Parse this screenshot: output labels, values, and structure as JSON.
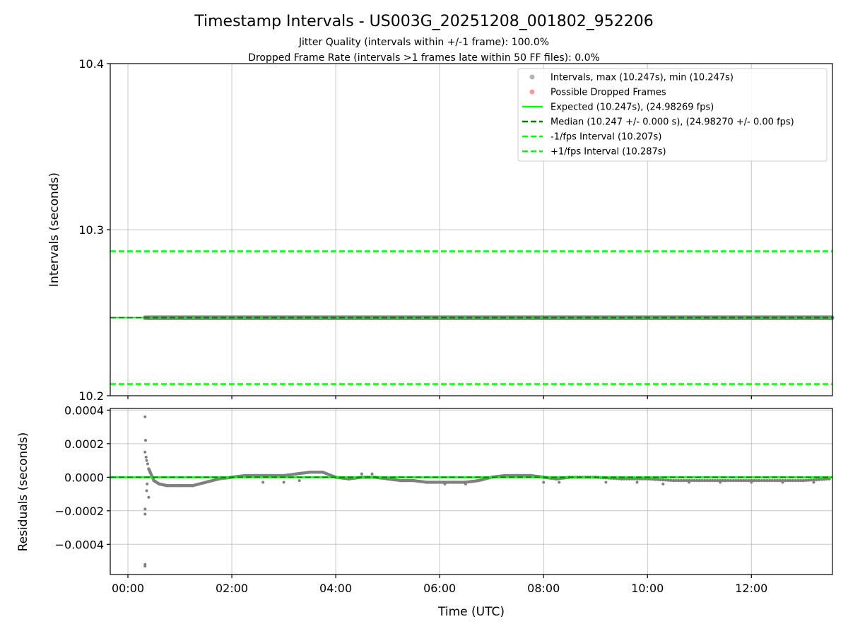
{
  "chart_data": [
    {
      "type": "scatter",
      "title": "Timestamp Intervals - US003G_20251208_001802_952206",
      "subtitle_lines": [
        "Jitter Quality (intervals within +/-1 frame): 100.0%",
        "Dropped Frame Rate (intervals >1 frames late within 50 FF files): 0.0%"
      ],
      "xlabel": "",
      "ylabel": "Intervals (seconds)",
      "xlim_hours": [
        -0.34,
        13.56
      ],
      "ylim": [
        10.2,
        10.4
      ],
      "yticks": [
        10.2,
        10.3,
        10.4
      ],
      "ytick_labels": [
        "10.2",
        "10.3",
        "10.4"
      ],
      "xticks_hours": [
        0,
        2,
        4,
        6,
        8,
        10,
        12
      ],
      "grid": true,
      "legend_position": "top-right",
      "series": [
        {
          "name": "Intervals, max (10.247s), min (10.247s)",
          "kind": "points",
          "color": "#808080",
          "x_range_hours": [
            0.33,
            13.56
          ],
          "value": 10.247
        },
        {
          "name": "Possible Dropped Frames",
          "kind": "points",
          "color": "#ff5555",
          "points": []
        },
        {
          "name": "Expected (10.247s), (24.98269 fps)",
          "kind": "line",
          "style": "solid",
          "color": "#00ff00",
          "value": 10.247
        },
        {
          "name": "Median (10.247 +/- 0.000 s), (24.98270 +/- 0.00 fps)",
          "kind": "line",
          "style": "dashed",
          "color": "#008000",
          "value": 10.247
        },
        {
          "name": "-1/fps Interval (10.207s)",
          "kind": "line",
          "style": "dashed",
          "color": "#00ff00",
          "value": 10.207
        },
        {
          "name": "+1/fps Interval (10.287s)",
          "kind": "line",
          "style": "dashed",
          "color": "#00ff00",
          "value": 10.287
        }
      ]
    },
    {
      "type": "scatter",
      "xlabel": "Time (UTC)",
      "ylabel": "Residuals (seconds)",
      "xlim_hours": [
        -0.34,
        13.56
      ],
      "ylim": [
        -0.00058,
        0.00041
      ],
      "yticks": [
        -0.0004,
        -0.0002,
        0.0,
        0.0002,
        0.0004
      ],
      "ytick_labels": [
        "−0.0004",
        "−0.0002",
        "0.0000",
        "0.0002",
        "0.0004"
      ],
      "xticks_hours": [
        0,
        2,
        4,
        6,
        8,
        10,
        12
      ],
      "xtick_labels": [
        "00:00",
        "02:00",
        "04:00",
        "06:00",
        "08:00",
        "10:00",
        "12:00"
      ],
      "grid": true,
      "zero_lines": [
        {
          "color": "#00ff00",
          "style": "solid"
        },
        {
          "color": "#008000",
          "style": "dashed"
        }
      ],
      "point_color": "#808080",
      "outliers": [
        [
          0.33,
          0.00036
        ],
        [
          0.34,
          0.00022
        ],
        [
          0.33,
          0.00015
        ],
        [
          0.35,
          0.00012
        ],
        [
          0.36,
          0.0001
        ],
        [
          0.38,
          8e-05
        ],
        [
          0.36,
          -8e-05
        ],
        [
          0.4,
          -0.00012
        ],
        [
          0.33,
          -0.00019
        ],
        [
          0.33,
          -0.00022
        ],
        [
          0.33,
          -0.00052
        ],
        [
          0.33,
          -0.00053
        ],
        [
          0.37,
          -4e-05
        ],
        [
          0.42,
          4e-05
        ]
      ],
      "trend": [
        [
          0.4,
          5e-05
        ],
        [
          0.5,
          -2e-05
        ],
        [
          0.6,
          -4e-05
        ],
        [
          0.75,
          -5e-05
        ],
        [
          1.0,
          -5e-05
        ],
        [
          1.25,
          -5e-05
        ],
        [
          1.5,
          -3e-05
        ],
        [
          1.75,
          -1e-05
        ],
        [
          2.0,
          0.0
        ],
        [
          2.25,
          1e-05
        ],
        [
          2.5,
          1e-05
        ],
        [
          2.75,
          1e-05
        ],
        [
          3.0,
          1e-05
        ],
        [
          3.25,
          2e-05
        ],
        [
          3.5,
          3e-05
        ],
        [
          3.75,
          3e-05
        ],
        [
          4.0,
          0.0
        ],
        [
          4.25,
          -1e-05
        ],
        [
          4.5,
          0.0
        ],
        [
          4.75,
          0.0
        ],
        [
          5.0,
          -1e-05
        ],
        [
          5.25,
          -2e-05
        ],
        [
          5.5,
          -2e-05
        ],
        [
          5.75,
          -3e-05
        ],
        [
          6.0,
          -3e-05
        ],
        [
          6.25,
          -3e-05
        ],
        [
          6.5,
          -3e-05
        ],
        [
          6.75,
          -2e-05
        ],
        [
          7.0,
          0.0
        ],
        [
          7.25,
          1e-05
        ],
        [
          7.5,
          1e-05
        ],
        [
          7.75,
          1e-05
        ],
        [
          8.0,
          0.0
        ],
        [
          8.25,
          -1e-05
        ],
        [
          8.5,
          0.0
        ],
        [
          9.0,
          0.0
        ],
        [
          9.5,
          -1e-05
        ],
        [
          10.0,
          -1e-05
        ],
        [
          10.5,
          -2e-05
        ],
        [
          11.0,
          -2e-05
        ],
        [
          11.5,
          -2e-05
        ],
        [
          12.0,
          -2e-05
        ],
        [
          12.5,
          -2e-05
        ],
        [
          13.0,
          -2e-05
        ],
        [
          13.5,
          -1e-05
        ]
      ],
      "scatter_band": [
        [
          2.6,
          -3e-05
        ],
        [
          3.0,
          -3e-05
        ],
        [
          3.3,
          -2e-05
        ],
        [
          4.5,
          2e-05
        ],
        [
          4.7,
          2e-05
        ],
        [
          6.1,
          -4e-05
        ],
        [
          6.5,
          -4e-05
        ],
        [
          8.0,
          -3e-05
        ],
        [
          8.3,
          -3e-05
        ],
        [
          9.2,
          -3e-05
        ],
        [
          9.8,
          -3e-05
        ],
        [
          10.3,
          -4e-05
        ],
        [
          10.8,
          -3e-05
        ],
        [
          11.4,
          -3e-05
        ],
        [
          12.0,
          -3e-05
        ],
        [
          12.6,
          -3e-05
        ],
        [
          13.2,
          -3e-05
        ]
      ]
    }
  ]
}
